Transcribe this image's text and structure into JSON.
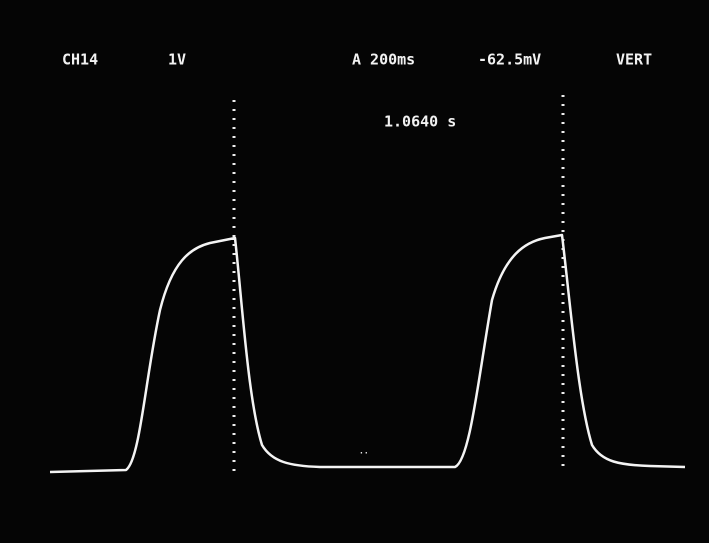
{
  "header": {
    "channel": "CH14",
    "scale": "1V",
    "timebase": "A 200ms",
    "trigger_level": "-62.5mV",
    "trigger_mode": "VERT"
  },
  "cursor_readout": "1.0640 s"
}
